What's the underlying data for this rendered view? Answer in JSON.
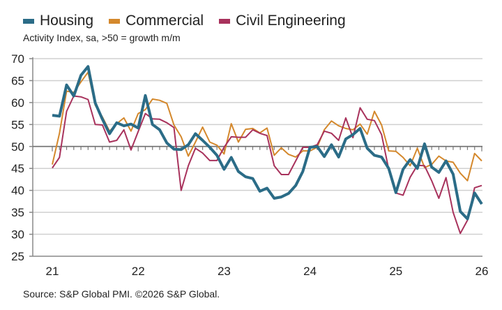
{
  "chart_data": {
    "type": "line",
    "subtitle": "Activity Index, sa, >50 = growth m/m",
    "source": "Source: S&P Global PMI. ©2026 S&P Global.",
    "x_start": "2021-01",
    "x_end": "2026-01",
    "x_frequency": "monthly",
    "x_tick_labels": [
      "21",
      "22",
      "23",
      "24",
      "25",
      "26"
    ],
    "y_tick_labels": [
      "25",
      "30",
      "35",
      "40",
      "45",
      "50",
      "55",
      "60",
      "65",
      "70"
    ],
    "ylim": [
      25,
      70
    ],
    "reference_line": 50,
    "grid": true,
    "legend": "top",
    "series": [
      {
        "name": "Housing",
        "color": "#2b6c87",
        "values": [
          57.1,
          56.9,
          64,
          61.5,
          66.2,
          68.2,
          59.9,
          56.2,
          52.9,
          55.4,
          54.7,
          55.1,
          54.2,
          61.6,
          55,
          53.8,
          50.8,
          49.4,
          49.3,
          50.4,
          52.9,
          51.4,
          49.8,
          48,
          44.8,
          47.5,
          44.3,
          43.1,
          42.7,
          39.8,
          40.5,
          38.2,
          38.5,
          39.3,
          41.1,
          44.3,
          49.8,
          50,
          47.7,
          50.4,
          47.6,
          51.7,
          52.7,
          54.1,
          49.6,
          48,
          47.6,
          45,
          39.5,
          44.8,
          47,
          45,
          50.6,
          45.3,
          44.1,
          46.7,
          43.7,
          35.2,
          33.5,
          39.4,
          36.9
        ]
      },
      {
        "name": "Commercial",
        "color": "#d4882c",
        "values": [
          45.9,
          53,
          62.6,
          62.3,
          64.7,
          66.9,
          59.4,
          56.7,
          53.5,
          55.2,
          56.5,
          53.5,
          57.5,
          58.4,
          60.8,
          60.5,
          59.8,
          54.9,
          52.2,
          47.8,
          51,
          54.4,
          51,
          50.3,
          48.3,
          55.2,
          51,
          53.9,
          54.1,
          53.1,
          54.2,
          48,
          49.7,
          48.2,
          47.6,
          49,
          49,
          49.8,
          53.8,
          55.8,
          54.7,
          54.1,
          53.8,
          55.1,
          52.8,
          58,
          54.9,
          49,
          48.9,
          47.5,
          45.6,
          49.6,
          45.2,
          45.9,
          47.8,
          46.7,
          46.4,
          43.9,
          42.2,
          48.4,
          46.7
        ]
      },
      {
        "name": "Civil Engineering",
        "color": "#a8325c",
        "values": [
          45.1,
          47.5,
          58,
          61.5,
          61.3,
          60.7,
          55,
          54.9,
          51,
          51.4,
          53.8,
          49.2,
          53.4,
          57.5,
          56.3,
          56.2,
          55.4,
          54.3,
          40,
          45.6,
          49.6,
          48.5,
          46.8,
          46.8,
          49.8,
          52.2,
          52.1,
          52.1,
          53.8,
          53,
          52.5,
          45.6,
          43.6,
          43.6,
          46.7,
          49.8,
          49.8,
          50.4,
          53.5,
          53,
          51.4,
          56.5,
          52,
          58.8,
          56.2,
          55.9,
          52.7,
          44.8,
          39.4,
          38.9,
          43,
          45.7,
          45.6,
          42.2,
          38.2,
          42.9,
          35,
          30.2,
          33.2,
          40.6,
          41.1
        ]
      }
    ]
  }
}
